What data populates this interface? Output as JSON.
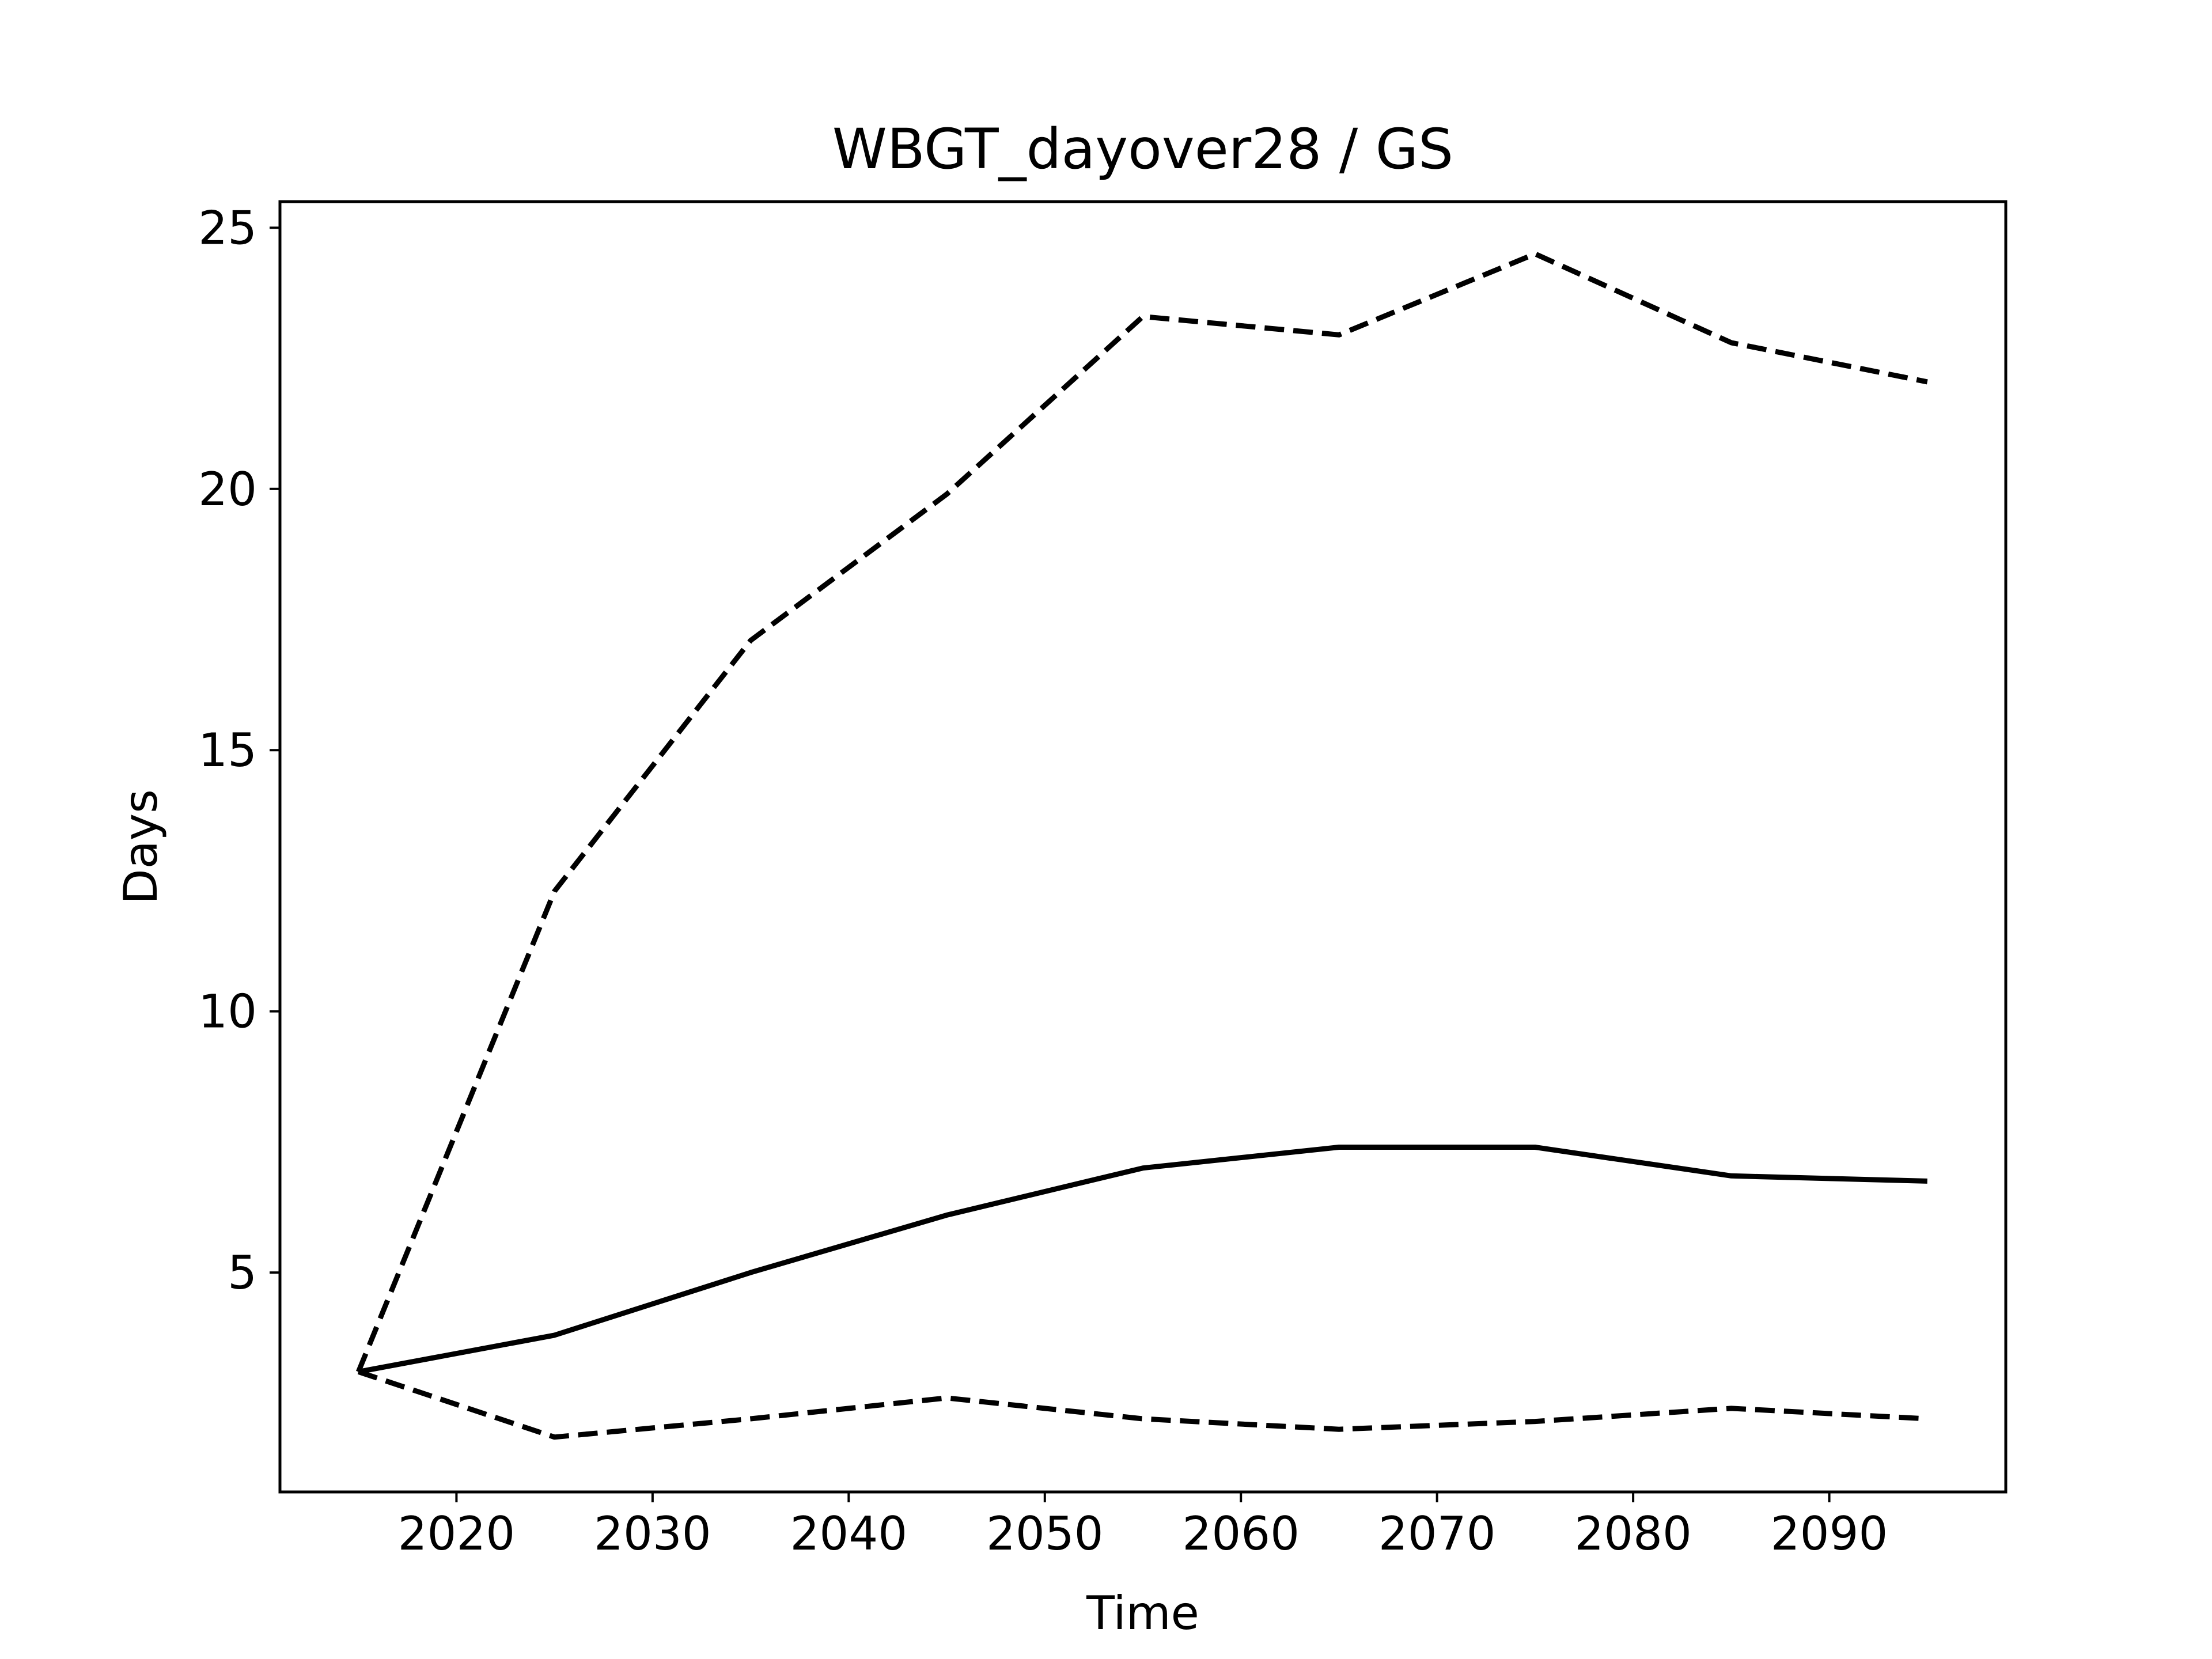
{
  "chart_data": {
    "type": "line",
    "title": "WBGT_dayover28 / GS",
    "xlabel": "Time",
    "ylabel": "Days",
    "xlim": [
      2011,
      2099
    ],
    "ylim": [
      0.8,
      25.5
    ],
    "xticks": [
      2020,
      2030,
      2040,
      2050,
      2060,
      2070,
      2080,
      2090
    ],
    "yticks": [
      5,
      10,
      15,
      20,
      25
    ],
    "grid": false,
    "legend": "none",
    "x": [
      2015,
      2025,
      2035,
      2045,
      2055,
      2065,
      2075,
      2085,
      2095
    ],
    "series": [
      {
        "style": "solid",
        "color": "#000000",
        "values": [
          3.1,
          3.8,
          5.0,
          6.1,
          7.0,
          7.4,
          7.4,
          6.85,
          6.75
        ]
      },
      {
        "style": "dashed",
        "color": "#000000",
        "values": [
          3.1,
          12.3,
          17.1,
          19.9,
          23.3,
          22.95,
          24.5,
          22.8,
          22.05
        ]
      },
      {
        "style": "dashed",
        "color": "#000000",
        "values": [
          3.1,
          1.85,
          2.2,
          2.6,
          2.2,
          2.0,
          2.15,
          2.4,
          2.2
        ]
      }
    ]
  }
}
